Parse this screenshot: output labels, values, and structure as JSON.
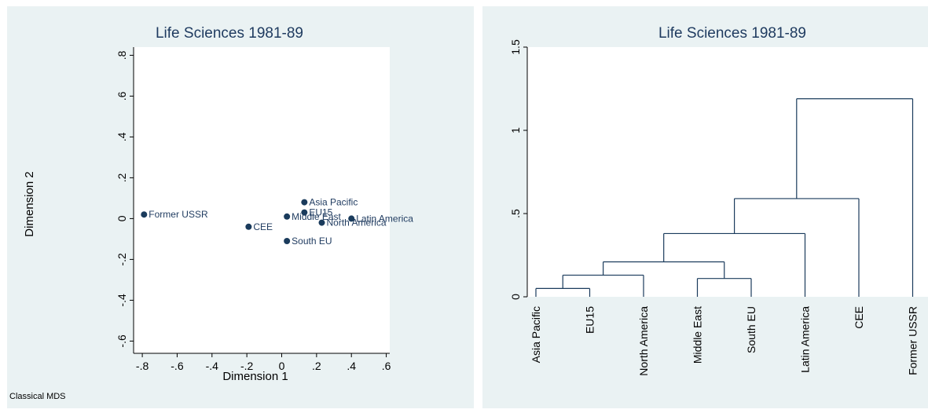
{
  "chart_data": [
    {
      "type": "scatter",
      "title": "Life Sciences  1981-89",
      "xlabel": "Dimension 1",
      "ylabel": "Dimension 2",
      "note": "Classical MDS",
      "xlim": [
        -0.85,
        0.62
      ],
      "ylim": [
        -0.66,
        0.84
      ],
      "xticks": [
        -0.8,
        -0.6,
        -0.4,
        -0.2,
        0,
        0.2,
        0.4,
        0.6
      ],
      "xtick_labels": [
        "-.8",
        "-.6",
        "-.4",
        "-.2",
        "0",
        ".2",
        ".4",
        ".6"
      ],
      "yticks": [
        -0.6,
        -0.4,
        -0.2,
        0,
        0.2,
        0.4,
        0.6,
        0.8
      ],
      "ytick_labels": [
        "-.6",
        "-.4",
        "-.2",
        "0",
        ".2",
        ".4",
        ".6",
        ".8"
      ],
      "grid": false,
      "points": [
        {
          "label": "Former USSR",
          "x": -0.79,
          "y": 0.02
        },
        {
          "label": "CEE",
          "x": -0.19,
          "y": -0.04
        },
        {
          "label": "Asia Pacific",
          "x": 0.13,
          "y": 0.08
        },
        {
          "label": "EU15",
          "x": 0.13,
          "y": 0.03
        },
        {
          "label": "Middle East",
          "x": 0.03,
          "y": 0.01
        },
        {
          "label": "North America",
          "x": 0.23,
          "y": -0.02
        },
        {
          "label": "Latin America",
          "x": 0.4,
          "y": 0.0
        },
        {
          "label": "South EU",
          "x": 0.03,
          "y": -0.11
        }
      ],
      "colors": {
        "marker": "#1a3b5c",
        "label": "#1e3a5f",
        "background": "#eaf2f3"
      }
    },
    {
      "type": "dendrogram",
      "title": "Life Sciences 1981-89",
      "ylim": [
        0,
        1.5
      ],
      "yticks": [
        0,
        0.5,
        1,
        1.5
      ],
      "ytick_labels": [
        "0",
        ".5",
        "1",
        "1.5"
      ],
      "leaves": [
        "Asia Pacific",
        "EU15",
        "North America",
        "Middle East",
        "South EU",
        "Latin America",
        "CEE",
        "Former USSR"
      ],
      "merges": [
        {
          "members": [
            "Asia Pacific",
            "EU15"
          ],
          "height": 0.05
        },
        {
          "members": [
            "Middle East",
            "South EU"
          ],
          "height": 0.11
        },
        {
          "members": [
            "Asia Pacific",
            "EU15",
            "North America"
          ],
          "height": 0.13
        },
        {
          "members": [
            "Asia Pacific",
            "EU15",
            "North America",
            "Middle East",
            "South EU"
          ],
          "height": 0.21
        },
        {
          "members": [
            "Asia Pacific",
            "EU15",
            "North America",
            "Middle East",
            "South EU",
            "Latin America"
          ],
          "height": 0.38
        },
        {
          "members": [
            "Asia Pacific",
            "EU15",
            "North America",
            "Middle East",
            "South EU",
            "Latin America",
            "CEE"
          ],
          "height": 0.59
        },
        {
          "members": [
            "Asia Pacific",
            "EU15",
            "North America",
            "Middle East",
            "South EU",
            "Latin America",
            "CEE",
            "Former USSR"
          ],
          "height": 1.19
        }
      ],
      "colors": {
        "line": "#1a3b5c",
        "background": "#eaf2f3"
      }
    }
  ]
}
